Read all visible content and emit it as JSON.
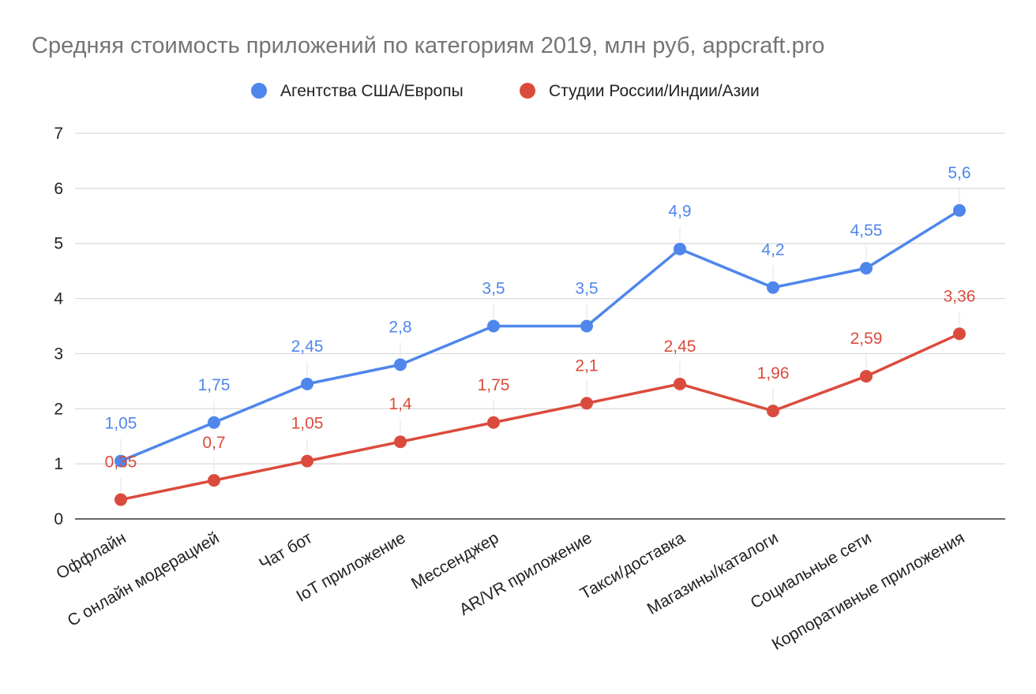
{
  "chart_data": {
    "type": "line",
    "title": "Средняя стоимость приложений по категориям 2019, млн руб, appcraft.pro",
    "xlabel": "",
    "ylabel": "",
    "ylim": [
      0,
      7
    ],
    "yticks": [
      0,
      1,
      2,
      3,
      4,
      5,
      6,
      7
    ],
    "grid": true,
    "legend_position": "top",
    "categories": [
      "Оффлайн",
      "С онлайн модерацией",
      "Чат бот",
      "IoT приложение",
      "Мессенджер",
      "AR/VR приложение",
      "Такси/доставка",
      "Магазины/каталоги",
      "Социальные сети",
      "Корпоративные приложения"
    ],
    "series": [
      {
        "name": "Агентства США/Европы",
        "color": "#4f86ec",
        "values": [
          1.05,
          1.75,
          2.45,
          2.8,
          3.5,
          3.5,
          4.9,
          4.2,
          4.55,
          5.6
        ],
        "labels": [
          "1,05",
          "1,75",
          "2,45",
          "2,8",
          "3,5",
          "3,5",
          "4,9",
          "4,2",
          "4,55",
          "5,6"
        ]
      },
      {
        "name": "Студии России/Индии/Азии",
        "color": "#db4b3d",
        "values": [
          0.35,
          0.7,
          1.05,
          1.4,
          1.75,
          2.1,
          2.45,
          1.96,
          2.59,
          3.36
        ],
        "labels": [
          "0,35",
          "0,7",
          "1,05",
          "1,4",
          "1,75",
          "2,1",
          "2,45",
          "1,96",
          "2,59",
          "3,36"
        ]
      }
    ]
  }
}
